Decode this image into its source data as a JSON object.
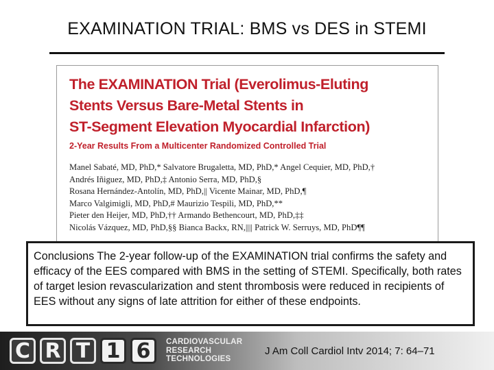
{
  "slide": {
    "title": "EXAMINATION TRIAL: BMS vs DES in STEMI"
  },
  "article": {
    "title_lines": [
      "The EXAMINATION Trial (Everolimus-Eluting",
      "Stents Versus Bare-Metal Stents in",
      "ST-Segment Elevation Myocardial Infarction)"
    ],
    "subtitle": "2-Year Results From a Multicenter Randomized Controlled Trial",
    "author_lines": [
      "Manel Sabaté, MD, PhD,* Salvatore Brugaletta, MD, PhD,* Angel Cequier, MD, PhD,†",
      "Andrés Iñiguez, MD, PhD,‡ Antonio Serra, MD, PhD,§",
      "Rosana Hernández-Antolín, MD, PhD,|| Vicente Mainar, MD, PhD,¶",
      "Marco Valgimigli, MD, PhD,# Maurizio Tespili, MD, PhD,**",
      "Pieter den Heijer, MD, PhD,†† Armando Bethencourt, MD, PhD,‡‡",
      "Nicolás Vázquez, MD, PhD,§§ Bianca Backx, RN,|||| Patrick W. Serruys, MD, PhD¶¶"
    ]
  },
  "conclusions": {
    "text": "Conclusions The 2-year follow-up of the EXAMINATION trial confirms the safety and efficacy of the EES compared with BMS in the setting of STEMI. Specifically, both rates of target lesion revascularization and stent thrombosis were reduced in recipients of EES without any signs of late attrition for either of these endpoints."
  },
  "footer": {
    "logo_letters": [
      "C",
      "R",
      "T",
      "1",
      "6"
    ],
    "logo_text_lines": [
      "CARDIOVASCULAR",
      "RESEARCH",
      "TECHNOLOGIES"
    ],
    "citation": "J Am Coll Cardiol Intv 2014; 7: 64–71"
  },
  "colors": {
    "article_title": "#c0202b",
    "footer_dark": "#1e1e1e"
  }
}
